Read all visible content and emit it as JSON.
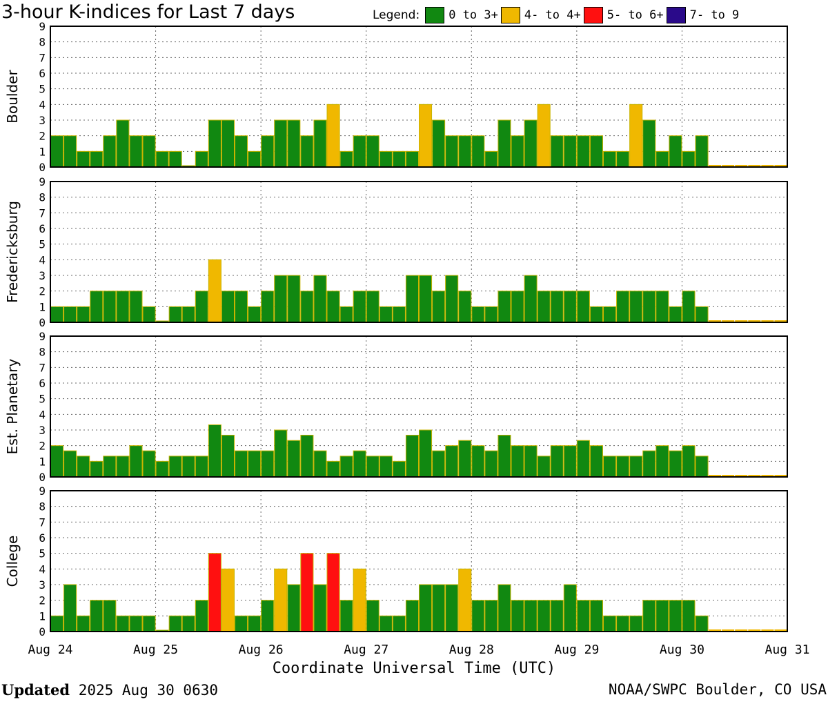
{
  "title": "3-hour K-indices for Last 7 days",
  "legend": {
    "label": "Legend:",
    "items": [
      {
        "label": "0 to 3+",
        "color": "#118811"
      },
      {
        "label": "4- to 4+",
        "color": "#f0b800"
      },
      {
        "label": "5- to 6+",
        "color": "#ff1010"
      },
      {
        "label": "7- to 9",
        "color": "#2a0a8a"
      }
    ]
  },
  "footer": {
    "updated_label": "Updated",
    "updated_value": "2025 Aug 30 0630",
    "source": "NOAA/SWPC Boulder, CO USA"
  },
  "chart_data": {
    "type": "bar",
    "xlabel": "Coordinate Universal Time (UTC)",
    "x_tick_labels": [
      "Aug 24",
      "Aug 25",
      "Aug 26",
      "Aug 27",
      "Aug 28",
      "Aug 29",
      "Aug 30",
      "Aug 31"
    ],
    "ylim": [
      0,
      9
    ],
    "y_ticks": [
      "0",
      "1",
      "2",
      "3",
      "4",
      "5",
      "6",
      "7",
      "8",
      "9"
    ],
    "grid": true,
    "bins_per_day": 8,
    "series": [
      {
        "name": "Boulder",
        "values": [
          2,
          2,
          1,
          1,
          2,
          3,
          2,
          2,
          1,
          1,
          0,
          1,
          3,
          3,
          2,
          1,
          2,
          3,
          3,
          2,
          3,
          4,
          1,
          2,
          2,
          1,
          1,
          1,
          4,
          3,
          2,
          2,
          2,
          1,
          3,
          2,
          3,
          4,
          2,
          2,
          2,
          2,
          1,
          1,
          4,
          3,
          1,
          2,
          1,
          2
        ]
      },
      {
        "name": "Fredericksburg",
        "values": [
          1,
          1,
          1,
          2,
          2,
          2,
          2,
          1,
          0,
          1,
          1,
          2,
          4,
          2,
          2,
          1,
          2,
          3,
          3,
          2,
          3,
          2,
          1,
          2,
          2,
          1,
          1,
          3,
          3,
          2,
          3,
          2,
          1,
          1,
          2,
          2,
          3,
          2,
          2,
          2,
          2,
          1,
          1,
          2,
          2,
          2,
          2,
          1,
          2,
          1
        ]
      },
      {
        "name": "Est. Planetary",
        "values": [
          2,
          1.67,
          1.33,
          1,
          1.33,
          1.33,
          2,
          1.67,
          1,
          1.33,
          1.33,
          1.33,
          3.33,
          2.67,
          1.67,
          1.67,
          1.67,
          3,
          2.33,
          2.67,
          1.67,
          1,
          1.33,
          1.67,
          1.33,
          1.33,
          1,
          2.67,
          3,
          1.67,
          2,
          2.33,
          2,
          1.67,
          2.67,
          2,
          2,
          1.33,
          2,
          2,
          2.33,
          2,
          1.33,
          1.33,
          1.33,
          1.67,
          2,
          1.67,
          2,
          1.33
        ]
      },
      {
        "name": "College",
        "values": [
          1,
          3,
          1,
          2,
          2,
          1,
          1,
          1,
          0,
          1,
          1,
          2,
          5,
          4,
          1,
          1,
          2,
          4,
          3,
          5,
          3,
          5,
          2,
          4,
          2,
          1,
          1,
          2,
          3,
          3,
          3,
          4,
          2,
          2,
          3,
          2,
          2,
          2,
          2,
          3,
          2,
          2,
          1,
          1,
          1,
          2,
          2,
          2,
          2,
          1
        ]
      }
    ]
  }
}
